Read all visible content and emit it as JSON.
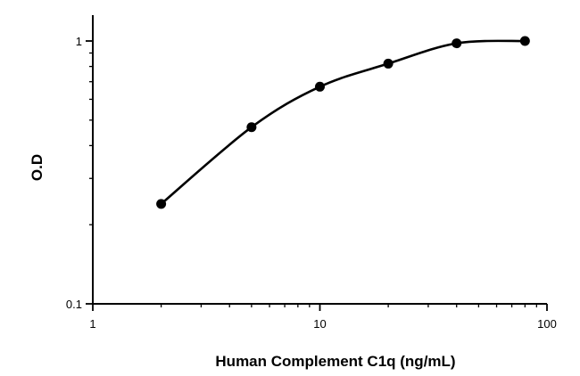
{
  "chart_data": {
    "type": "scatter",
    "title": "",
    "xlabel": "Human Complement C1q (ng/mL)",
    "ylabel": "O.D",
    "x_scale": "log",
    "y_scale": "log",
    "xlim": [
      1,
      100
    ],
    "ylim": [
      0.1,
      1
    ],
    "x_ticks": [
      {
        "value": 1,
        "label": "1"
      },
      {
        "value": 10,
        "label": "10"
      },
      {
        "value": 100,
        "label": "100"
      }
    ],
    "y_ticks": [
      {
        "value": 0.1,
        "label": "0.1"
      },
      {
        "value": 1,
        "label": "1"
      }
    ],
    "grid": false,
    "legend": "none",
    "line_color": "#000000",
    "marker_color": "#000000",
    "series": [
      {
        "x": [
          2,
          5,
          10,
          20,
          40,
          80
        ],
        "y": [
          0.24,
          0.47,
          0.67,
          0.82,
          0.98,
          1.0
        ]
      }
    ]
  }
}
